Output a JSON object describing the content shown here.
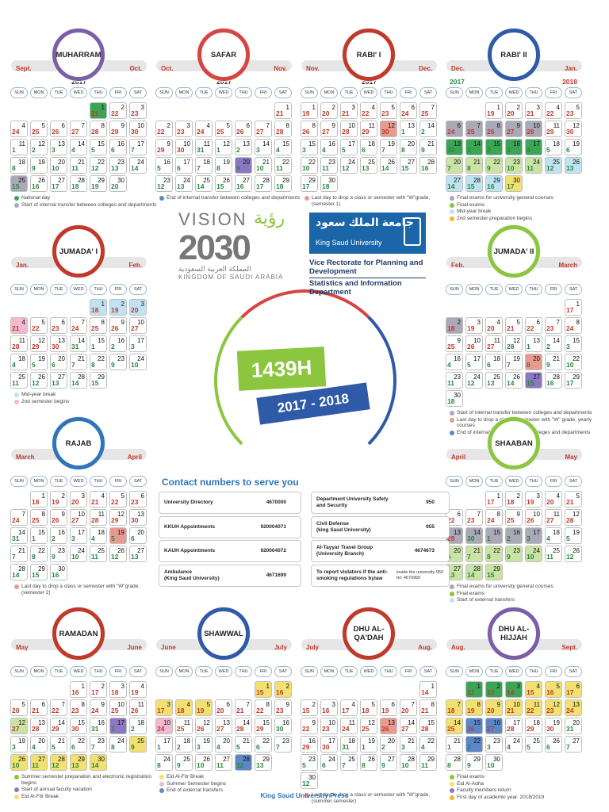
{
  "poster": {
    "center_title": "1439H",
    "center_years": "2017 - 2018",
    "vision_word": "VISION",
    "vision_ar": "رؤية",
    "vision_2030": "2030",
    "vision_ar_kingdom": "المملكة العربية السعودية",
    "vision_en_kingdom": "KINGDOM OF SAUDI ARABIA",
    "ksu_ar": "جامعة الملك سعود",
    "ksu_en": "King Saud University",
    "vice_rectorate": "Vice Rectorate for Planning and Development",
    "stats_dept": "Statistics and Information Department",
    "press": "King Saud University Press",
    "contact_title": "Contact numbers to serve you"
  },
  "colors": {
    "green": "#8cc63f",
    "blue": "#2e5aa7",
    "red": "#d64541",
    "text_blue": "#2e76b8"
  },
  "dow": [
    "SUN",
    "MON",
    "TUE",
    "WED",
    "THU",
    "FRI",
    "SAT"
  ],
  "contacts": [
    {
      "label": "University Directory",
      "value": "4670000"
    },
    {
      "label": "KKUH Appointments",
      "value": "920004071"
    },
    {
      "label": "KAUH Appointments",
      "value": "920004072"
    },
    {
      "label": "Ambulance\n(King Saud University)",
      "value": "4671699"
    },
    {
      "label": "Department University Safety and Security",
      "value": "950"
    },
    {
      "label": "Civil Defense\n(king Saud University)",
      "value": "955"
    },
    {
      "label": "Al-Tayyar Travel Group\n(University Branch)",
      "value": "4674673"
    },
    {
      "label": "To report violators if the anti-smoking regulations bylaw",
      "value": "",
      "note": "inside the university 950 tel: 4670950"
    }
  ],
  "months": [
    {
      "name": "MUHARRAM",
      "g1": "Sept.",
      "g2": "Oct.",
      "year": "2017",
      "start": 4,
      "gstart": 21,
      "gcolor1": "red",
      "gsplit": 11,
      "glen": 30,
      "days": 30,
      "hl": {
        "1": "dgreen",
        "25": "gray"
      },
      "legend": [
        {
          "color": "#3aa655",
          "text": "National day"
        },
        {
          "color": "#a9a9b8",
          "text": "Start of internal transfer between colleges and departments"
        }
      ]
    },
    {
      "name": "SAFAR",
      "g1": "Oct.",
      "g2": "Nov.",
      "year": "2017",
      "start": 6,
      "gstart": 21,
      "gsplit": 11,
      "glen": 31,
      "days": 29,
      "hl": {
        "20": "purple"
      },
      "legend": [
        {
          "color": "#5b87c9",
          "text": "End of internal transfer between colleges and departments"
        }
      ]
    },
    {
      "name": "RABI' I",
      "g1": "Nov.",
      "g2": "Dec.",
      "year": "2017",
      "start": 0,
      "gstart": 19,
      "gsplit": 13,
      "glen": 30,
      "days": 30,
      "hl": {
        "12": "salmon"
      },
      "legend": [
        {
          "color": "#e99a8f",
          "text": "Last day to drop a class or semester with \"W\"grade, (semester 1)"
        }
      ]
    },
    {
      "name": "RABI' II",
      "g1": "Dec.",
      "g2": "Jan.",
      "year": "2017",
      "year2": "2018",
      "start": 2,
      "gstart": 19,
      "gsplit": 13,
      "glen": 31,
      "days": 30,
      "hl": {
        "6": "gray",
        "7": "gray",
        "8": "gray",
        "9": "gray",
        "10": "gray",
        "13": "dgreen",
        "14": "dgreen",
        "15": "dgreen",
        "16": "dgreen",
        "17": "dgreen",
        "20": "lgreen",
        "21": "lgreen",
        "22": "lgreen",
        "23": "lgreen",
        "24": "lgreen",
        "25": "blue",
        "26": "blue",
        "27": "blue",
        "28": "blue",
        "29": "blue",
        "30": "yellow"
      },
      "legend": [
        {
          "color": "#a9a9b8",
          "text": "Final exams for university general courses"
        },
        {
          "color": "#8cc63f",
          "text": "Final exams"
        },
        {
          "color": "#bfe3f2",
          "text": "Mid-year break"
        },
        {
          "color": "#f7b32b",
          "text": "2nd semester preparation begins"
        }
      ]
    },
    {
      "name": "JUMADA' I",
      "g1": "Jan.",
      "g2": "Feb.",
      "year": "",
      "start": 4,
      "gstart": 18,
      "gsplit": 14,
      "glen": 31,
      "days": 29,
      "hl": {
        "1": "blue",
        "2": "blue",
        "3": "blue",
        "4": "pink"
      },
      "legend": [
        {
          "color": "#bfe3f2",
          "text": "Mid-year break"
        },
        {
          "color": "#f6b8d0",
          "text": "2nd semester begins"
        }
      ]
    },
    {
      "name": "JUMADA' II",
      "g1": "Feb.",
      "g2": "March",
      "year": "",
      "start": 6,
      "gstart": 17,
      "gsplit": 12,
      "glen": 28,
      "days": 30,
      "hl": {
        "2": "gray",
        "20": "salmon",
        "27": "purple"
      },
      "legend": [
        {
          "color": "#a9a9b8",
          "text": "Start of internal transfer between colleges and departments"
        },
        {
          "color": "#e99a8f",
          "text": "Last day to drop a class or semester with \"W\" grade, yearly courses"
        },
        {
          "color": "#5b87c9",
          "text": "End of internal transfer between colleges and departments"
        }
      ]
    },
    {
      "name": "RAJAB",
      "g1": "March",
      "g2": "April",
      "year": "",
      "start": 1,
      "gstart": 18,
      "gsplit": 14,
      "glen": 31,
      "days": 30,
      "hl": {
        "19": "salmon"
      },
      "legend": [
        {
          "color": "#e99a8f",
          "text": "Last day to drop a class or semester with \"W\"grade, (semester 2)"
        }
      ]
    },
    {
      "name": "SHAABAN",
      "g1": "April",
      "g2": "May",
      "year": "",
      "start": 2,
      "gstart": 17,
      "gsplit": 14,
      "glen": 30,
      "days": 29,
      "hl": {
        "13": "gray",
        "14": "gray",
        "15": "gray",
        "16": "gray",
        "17": "gray",
        "20": "lgreen",
        "21": "lgreen",
        "22": "lgreen",
        "23": "lgreen",
        "24": "lgreen",
        "27": "lgreen",
        "28": "lgreen",
        "29": "lgreen"
      },
      "legend": [
        {
          "color": "#a9a9b8",
          "text": "Final exams for university general courses"
        },
        {
          "color": "#8cc63f",
          "text": "Final exams"
        },
        {
          "color": "#bfe3f2",
          "text": "Start of external transfers"
        }
      ]
    },
    {
      "name": "RAMADAN",
      "g1": "May",
      "g2": "June",
      "year": "",
      "start": 3,
      "gstart": 16,
      "gsplit": 16,
      "glen": 31,
      "days": 30,
      "hl": {
        "12": "lgreen",
        "17": "purple",
        "25": "yellow",
        "26": "yellow",
        "27": "yellow",
        "28": "yellow",
        "29": "yellow",
        "30": "yellow"
      },
      "legend": [
        {
          "color": "#8cc63f",
          "text": "Summer semester preparation and electronic registration begins"
        },
        {
          "color": "#8a78c4",
          "text": "Start of annual faculty vacation"
        },
        {
          "color": "#f2e071",
          "text": "Eid Al-Fitr Break"
        }
      ]
    },
    {
      "name": "SHAWWAL",
      "g1": "June",
      "g2": "July",
      "year": "",
      "start": 5,
      "gstart": 15,
      "gsplit": 16,
      "glen": 30,
      "days": 29,
      "hl": {
        "1": "yellow",
        "2": "yellow",
        "3": "yellow",
        "4": "yellow",
        "5": "yellow",
        "10": "pink",
        "28": "dblue"
      },
      "legend": [
        {
          "color": "#f2e071",
          "text": "Eid Al-Fitr Break"
        },
        {
          "color": "#f6b8d0",
          "text": "Summer Semester begins"
        },
        {
          "color": "#5b87c9",
          "text": "End of external transfers"
        }
      ]
    },
    {
      "name": "DHU AL-QA'DAH",
      "g1": "July",
      "g2": "Aug.",
      "year": "",
      "start": 6,
      "gstart": 14,
      "gsplit": 18,
      "glen": 31,
      "days": 30,
      "hl": {
        "13": "salmon"
      },
      "legend": [
        {
          "color": "#e99a8f",
          "text": "Last day to drop a class or semester with \"W\"grade, (summer semester)"
        }
      ]
    },
    {
      "name": "DHU AL-HIJJAH",
      "g1": "Aug.",
      "g2": "Sept.",
      "year": "",
      "start": 1,
      "gstart": 12,
      "gsplit": 20,
      "glen": 31,
      "days": 30,
      "hl": {
        "1": "dgreen",
        "2": "dgreen",
        "3": "dgreen",
        "4": "yellow",
        "5": "yellow",
        "6": "yellow",
        "7": "yellow",
        "8": "yellow",
        "9": "yellow",
        "10": "yellow",
        "11": "yellow",
        "12": "yellow",
        "13": "yellow",
        "14": "yellow",
        "15": "dblue",
        "16": "dblue",
        "22": "dblue"
      },
      "legend": [
        {
          "color": "#8cc63f",
          "text": "Final exams"
        },
        {
          "color": "#f2e071",
          "text": "Eid Al-Adha"
        },
        {
          "color": "#8a78c4",
          "text": "Faculty members return"
        },
        {
          "color": "#f7b32b",
          "text": "First day of academic year. 2018/2019"
        }
      ]
    }
  ]
}
